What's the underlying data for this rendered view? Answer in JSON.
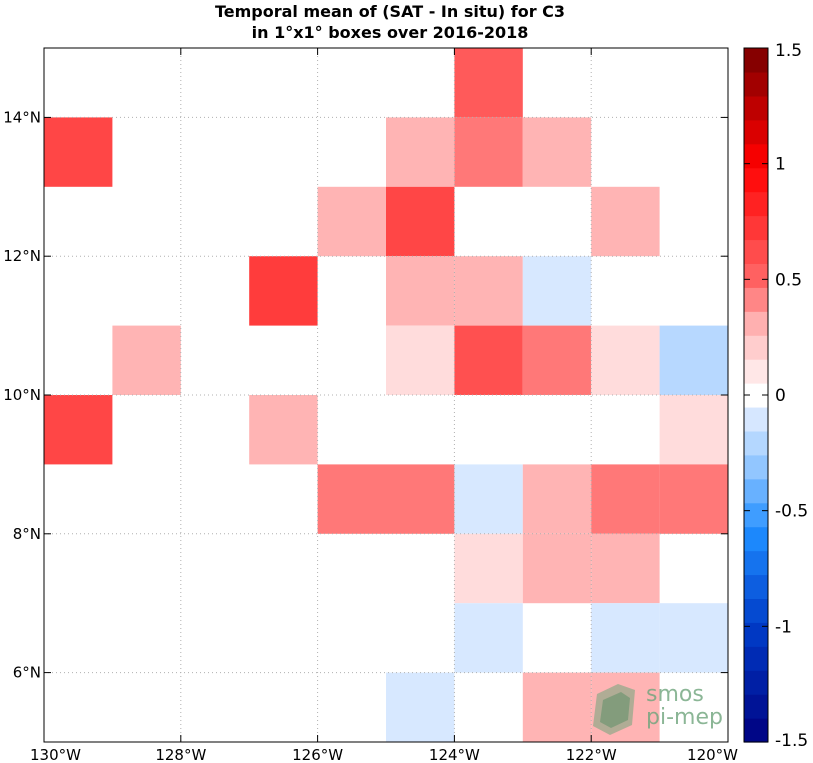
{
  "chart_data": {
    "type": "heatmap",
    "title_lines": [
      "Temporal mean of (SAT - In situ) for C3",
      "in 1°x1° boxes over 2016-2018"
    ],
    "x_range": [
      -130,
      -120
    ],
    "y_range": [
      5,
      15
    ],
    "x_ticks": [
      {
        "value": -130,
        "label": "130°W"
      },
      {
        "value": -128,
        "label": "128°W"
      },
      {
        "value": -126,
        "label": "126°W"
      },
      {
        "value": -124,
        "label": "124°W"
      },
      {
        "value": -122,
        "label": "122°W"
      },
      {
        "value": -120,
        "label": "120°W"
      }
    ],
    "y_ticks": [
      {
        "value": 6,
        "label": "6°N"
      },
      {
        "value": 8,
        "label": "8°N"
      },
      {
        "value": 10,
        "label": "10°N"
      },
      {
        "value": 12,
        "label": "12°N"
      },
      {
        "value": 14,
        "label": "14°N"
      }
    ],
    "grid": true,
    "cells": [
      {
        "lon": -123.5,
        "lat": 14.5,
        "value": 0.55
      },
      {
        "lon": -129.5,
        "lat": 13.5,
        "value": 0.65
      },
      {
        "lon": -124.5,
        "lat": 13.5,
        "value": 0.3
      },
      {
        "lon": -123.5,
        "lat": 13.5,
        "value": 0.45
      },
      {
        "lon": -122.5,
        "lat": 13.5,
        "value": 0.3
      },
      {
        "lon": -125.5,
        "lat": 12.5,
        "value": 0.3
      },
      {
        "lon": -124.5,
        "lat": 12.5,
        "value": 0.65
      },
      {
        "lon": -121.5,
        "lat": 12.5,
        "value": 0.3
      },
      {
        "lon": -126.5,
        "lat": 11.5,
        "value": 0.7
      },
      {
        "lon": -124.5,
        "lat": 11.5,
        "value": 0.3
      },
      {
        "lon": -123.5,
        "lat": 11.5,
        "value": 0.3
      },
      {
        "lon": -122.5,
        "lat": 11.5,
        "value": -0.1
      },
      {
        "lon": -128.5,
        "lat": 10.5,
        "value": 0.3
      },
      {
        "lon": -124.5,
        "lat": 10.5,
        "value": 0.15
      },
      {
        "lon": -123.5,
        "lat": 10.5,
        "value": 0.6
      },
      {
        "lon": -122.5,
        "lat": 10.5,
        "value": 0.45
      },
      {
        "lon": -121.5,
        "lat": 10.5,
        "value": 0.15
      },
      {
        "lon": -120.5,
        "lat": 10.5,
        "value": -0.2
      },
      {
        "lon": -129.5,
        "lat": 9.5,
        "value": 0.65
      },
      {
        "lon": -126.5,
        "lat": 9.5,
        "value": 0.3
      },
      {
        "lon": -120.5,
        "lat": 9.5,
        "value": 0.15
      },
      {
        "lon": -125.5,
        "lat": 8.5,
        "value": 0.45
      },
      {
        "lon": -124.5,
        "lat": 8.5,
        "value": 0.45
      },
      {
        "lon": -123.5,
        "lat": 8.5,
        "value": -0.1
      },
      {
        "lon": -122.5,
        "lat": 8.5,
        "value": 0.3
      },
      {
        "lon": -121.5,
        "lat": 8.5,
        "value": 0.45
      },
      {
        "lon": -120.5,
        "lat": 8.5,
        "value": 0.45
      },
      {
        "lon": -123.5,
        "lat": 7.5,
        "value": 0.15
      },
      {
        "lon": -122.5,
        "lat": 7.5,
        "value": 0.3
      },
      {
        "lon": -121.5,
        "lat": 7.5,
        "value": 0.3
      },
      {
        "lon": -123.5,
        "lat": 6.5,
        "value": -0.1
      },
      {
        "lon": -121.5,
        "lat": 6.5,
        "value": -0.1
      },
      {
        "lon": -120.5,
        "lat": 6.5,
        "value": -0.1
      },
      {
        "lon": -124.5,
        "lat": 5.5,
        "value": -0.1
      },
      {
        "lon": -122.5,
        "lat": 5.5,
        "value": 0.3
      },
      {
        "lon": -121.5,
        "lat": 5.5,
        "value": 0.3
      }
    ],
    "colorbar": {
      "range": [
        -1.5,
        1.5
      ],
      "levels": 29,
      "ticks": [
        {
          "value": 1.5,
          "label": "1.5"
        },
        {
          "value": 1,
          "label": "1"
        },
        {
          "value": 0.5,
          "label": "0.5"
        },
        {
          "value": 0,
          "label": "0"
        },
        {
          "value": -0.5,
          "label": "-0.5"
        },
        {
          "value": -1,
          "label": "-1"
        },
        {
          "value": -1.5,
          "label": "-1.5"
        }
      ]
    }
  },
  "logo": {
    "line1": "smos",
    "line2": "pi-mep"
  }
}
